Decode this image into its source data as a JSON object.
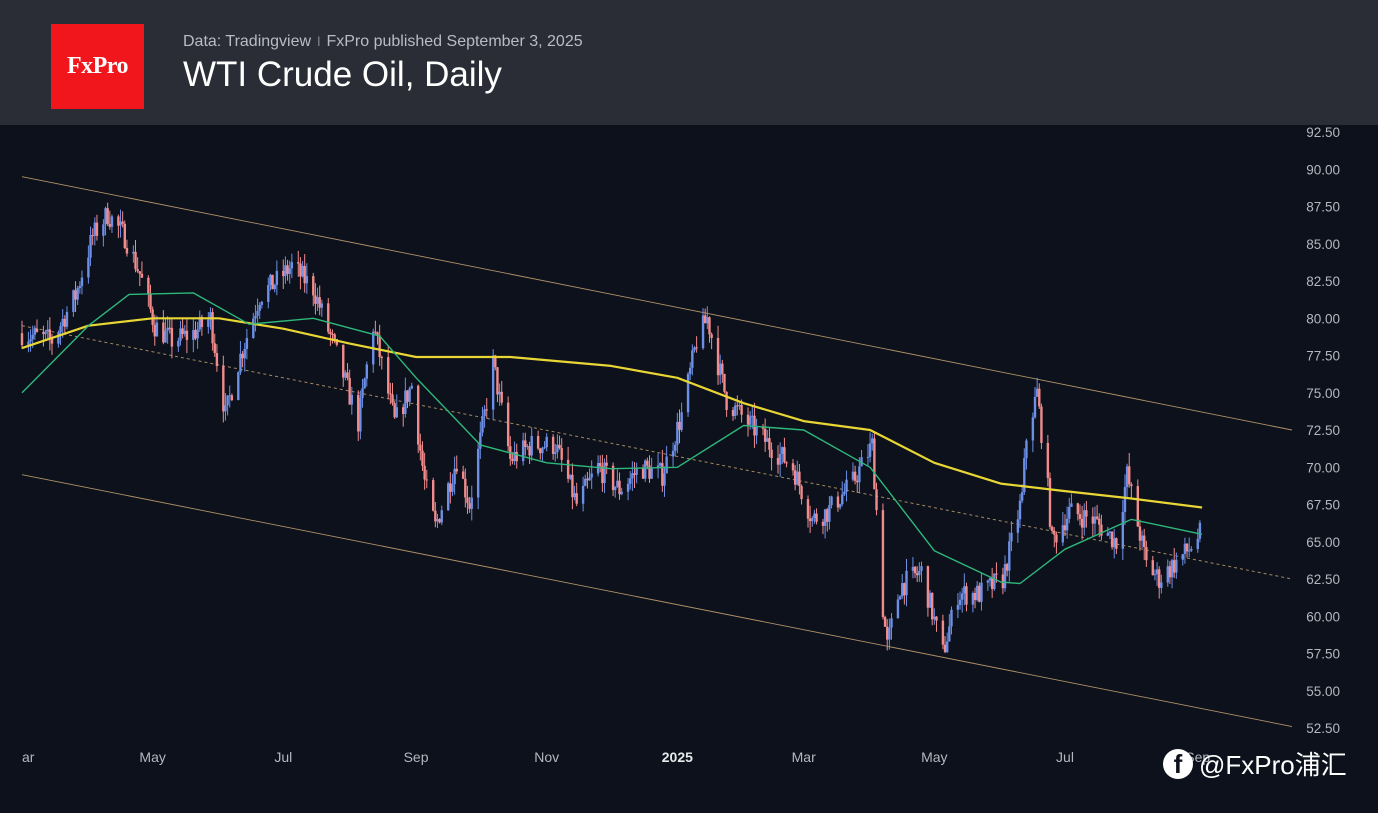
{
  "header": {
    "logo_text": "FxPro",
    "source": "Data: Tradingview",
    "separator": "ǀ",
    "published": "FxPro published September 3, 2025",
    "title": "WTI Crude Oil, Daily"
  },
  "watermark": {
    "icon": "facebook-icon",
    "text": "@FxPro浦汇"
  },
  "colors": {
    "background": "#0c111c",
    "header": "#2a2d35",
    "logo": "#f0161c",
    "up_candle": "#6d8fe6",
    "down_candle": "#f28c8c",
    "ma_long": "#e8d635",
    "ma_short": "#2eb87a",
    "channel": "#d9b27a"
  },
  "chart_data": {
    "type": "candlestick",
    "title": "WTI Crude Oil, Daily",
    "xlabel": "",
    "ylabel": "",
    "x_ticks": [
      "ar",
      "May",
      "Jul",
      "Sep",
      "Nov",
      "2025",
      "Mar",
      "May",
      "Jul",
      "Sep"
    ],
    "y_ticks": [
      "92.50",
      "90.00",
      "87.50",
      "85.00",
      "82.50",
      "80.00",
      "77.50",
      "75.00",
      "72.50",
      "70.00",
      "67.50",
      "65.00",
      "62.50",
      "60.00",
      "57.50",
      "55.00",
      "52.50"
    ],
    "ylim": [
      52.5,
      92.5
    ],
    "x_range": [
      "2024-03-01",
      "2025-10-15"
    ],
    "series": [
      {
        "kind": "price_path",
        "points": [
          [
            "2024-03-01",
            79.0
          ],
          [
            "2024-03-15",
            78.5
          ],
          [
            "2024-03-26",
            81.5
          ],
          [
            "2024-04-03",
            85.5
          ],
          [
            "2024-04-10",
            87.0
          ],
          [
            "2024-04-18",
            85.5
          ],
          [
            "2024-04-25",
            83.0
          ],
          [
            "2024-05-02",
            79.5
          ],
          [
            "2024-05-10",
            78.5
          ],
          [
            "2024-05-20",
            79.0
          ],
          [
            "2024-05-28",
            80.0
          ],
          [
            "2024-06-04",
            73.5
          ],
          [
            "2024-06-10",
            77.0
          ],
          [
            "2024-06-20",
            81.5
          ],
          [
            "2024-06-28",
            82.5
          ],
          [
            "2024-07-05",
            83.5
          ],
          [
            "2024-07-15",
            82.0
          ],
          [
            "2024-07-25",
            78.0
          ],
          [
            "2024-08-05",
            73.0
          ],
          [
            "2024-08-12",
            79.5
          ],
          [
            "2024-08-22",
            73.0
          ],
          [
            "2024-08-30",
            75.5
          ],
          [
            "2024-09-05",
            69.0
          ],
          [
            "2024-09-10",
            66.0
          ],
          [
            "2024-09-20",
            70.5
          ],
          [
            "2024-09-26",
            67.5
          ],
          [
            "2024-10-07",
            77.0
          ],
          [
            "2024-10-15",
            70.5
          ],
          [
            "2024-10-25",
            71.5
          ],
          [
            "2024-11-05",
            71.5
          ],
          [
            "2024-11-15",
            67.5
          ],
          [
            "2024-11-25",
            70.0
          ],
          [
            "2024-12-05",
            68.5
          ],
          [
            "2024-12-15",
            70.0
          ],
          [
            "2024-12-25",
            69.5
          ],
          [
            "2025-01-03",
            73.5
          ],
          [
            "2025-01-10",
            78.5
          ],
          [
            "2025-01-15",
            80.0
          ],
          [
            "2025-01-24",
            74.5
          ],
          [
            "2025-02-03",
            73.0
          ],
          [
            "2025-02-13",
            71.5
          ],
          [
            "2025-02-24",
            70.0
          ],
          [
            "2025-03-05",
            66.5
          ],
          [
            "2025-03-12",
            67.0
          ],
          [
            "2025-03-24",
            69.0
          ],
          [
            "2025-04-02",
            71.5
          ],
          [
            "2025-04-07",
            60.5
          ],
          [
            "2025-04-09",
            58.0
          ],
          [
            "2025-04-15",
            62.0
          ],
          [
            "2025-04-25",
            63.0
          ],
          [
            "2025-05-05",
            57.5
          ],
          [
            "2025-05-12",
            61.5
          ],
          [
            "2025-05-22",
            61.5
          ],
          [
            "2025-06-02",
            62.5
          ],
          [
            "2025-06-11",
            68.0
          ],
          [
            "2025-06-13",
            72.0
          ],
          [
            "2025-06-18",
            75.0
          ],
          [
            "2025-06-23",
            68.5
          ],
          [
            "2025-06-25",
            65.0
          ],
          [
            "2025-07-03",
            67.0
          ],
          [
            "2025-07-14",
            66.5
          ],
          [
            "2025-07-25",
            65.0
          ],
          [
            "2025-07-30",
            69.5
          ],
          [
            "2025-08-08",
            63.5
          ],
          [
            "2025-08-14",
            62.5
          ],
          [
            "2025-08-21",
            63.5
          ],
          [
            "2025-08-28",
            64.5
          ],
          [
            "2025-09-02",
            65.5
          ]
        ]
      },
      {
        "kind": "moving_average",
        "color": "#e8d635",
        "points": [
          [
            "2024-03-01",
            78.0
          ],
          [
            "2024-04-01",
            79.5
          ],
          [
            "2024-05-01",
            80.0
          ],
          [
            "2024-06-01",
            80.0
          ],
          [
            "2024-07-01",
            79.3
          ],
          [
            "2024-08-01",
            78.3
          ],
          [
            "2024-09-01",
            77.4
          ],
          [
            "2024-10-15",
            77.4
          ],
          [
            "2024-12-01",
            76.8
          ],
          [
            "2025-01-01",
            76.0
          ],
          [
            "2025-02-01",
            74.3
          ],
          [
            "2025-03-01",
            73.1
          ],
          [
            "2025-04-01",
            72.5
          ],
          [
            "2025-05-01",
            70.3
          ],
          [
            "2025-06-01",
            68.9
          ],
          [
            "2025-07-01",
            68.4
          ],
          [
            "2025-08-01",
            67.9
          ],
          [
            "2025-09-03",
            67.3
          ]
        ]
      },
      {
        "kind": "moving_average",
        "color": "#2eb87a",
        "points": [
          [
            "2024-03-01",
            75.0
          ],
          [
            "2024-04-01",
            79.5
          ],
          [
            "2024-04-20",
            81.6
          ],
          [
            "2024-05-20",
            81.7
          ],
          [
            "2024-06-15",
            79.6
          ],
          [
            "2024-07-15",
            80.0
          ],
          [
            "2024-08-15",
            78.8
          ],
          [
            "2024-09-01",
            76.0
          ],
          [
            "2024-10-01",
            71.5
          ],
          [
            "2024-11-01",
            70.3
          ],
          [
            "2024-12-01",
            69.9
          ],
          [
            "2025-01-01",
            70.0
          ],
          [
            "2025-02-01",
            72.8
          ],
          [
            "2025-03-01",
            72.5
          ],
          [
            "2025-04-01",
            70.0
          ],
          [
            "2025-05-01",
            64.4
          ],
          [
            "2025-06-01",
            62.3
          ],
          [
            "2025-06-10",
            62.2
          ],
          [
            "2025-07-01",
            64.5
          ],
          [
            "2025-08-01",
            66.5
          ],
          [
            "2025-09-03",
            65.5
          ]
        ]
      }
    ],
    "channel": {
      "upper": [
        [
          "2024-03-01",
          89.5
        ],
        [
          "2025-10-15",
          72.5
        ]
      ],
      "middle": [
        [
          "2024-03-01",
          79.5
        ],
        [
          "2025-10-15",
          62.5
        ]
      ],
      "lower": [
        [
          "2024-03-01",
          69.5
        ],
        [
          "2025-10-15",
          52.6
        ]
      ]
    },
    "grid": false,
    "legend": "none"
  }
}
